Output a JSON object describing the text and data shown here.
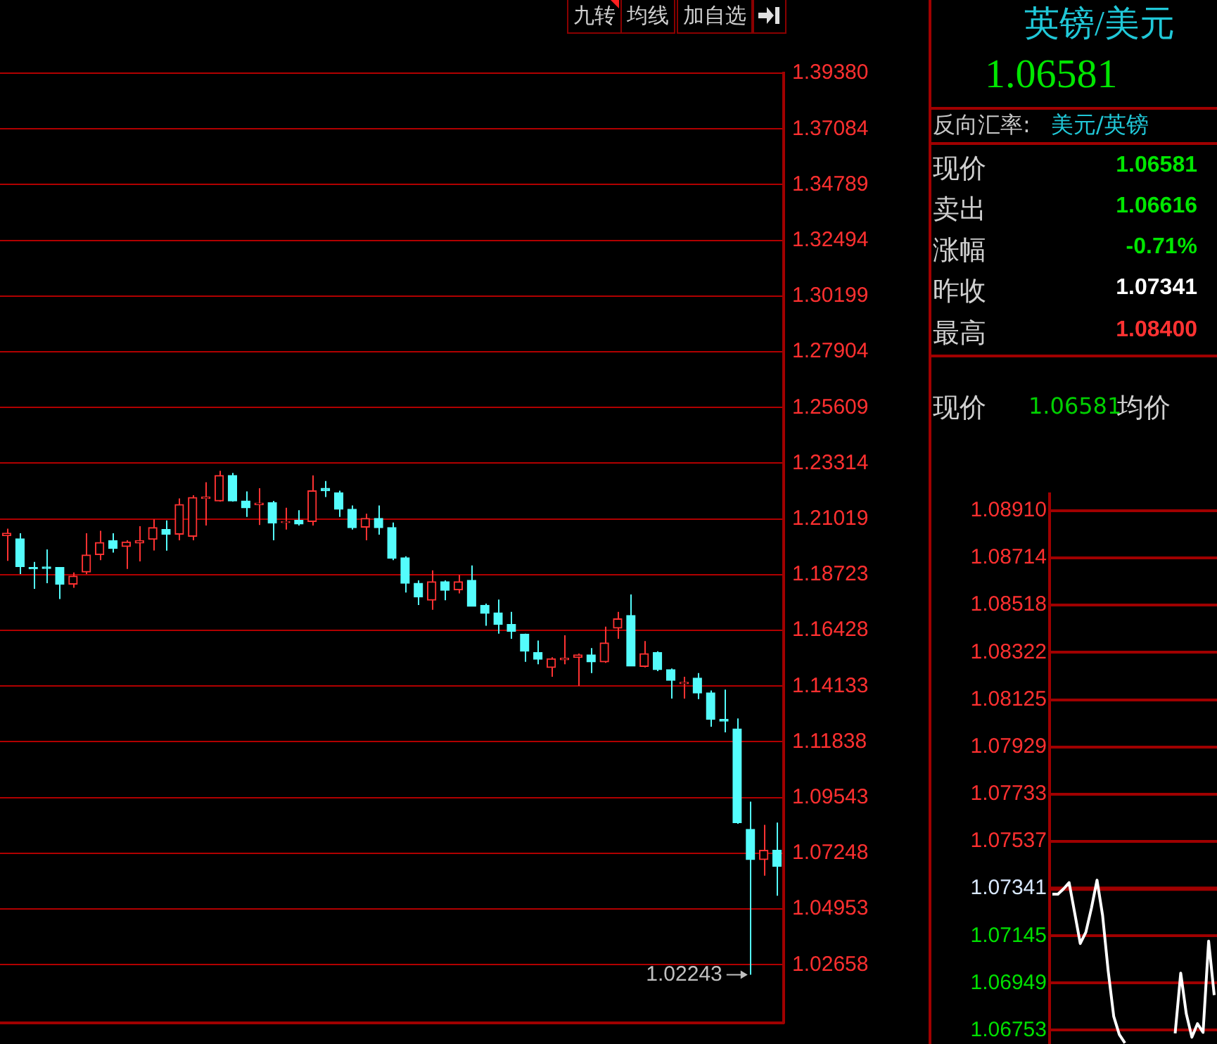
{
  "chart_data": [
    {
      "type": "candlestick",
      "categories": [
        null,
        null,
        null,
        null,
        null,
        null,
        null,
        null,
        null,
        null,
        null,
        null,
        null,
        null,
        null,
        null,
        null,
        null,
        null,
        null,
        null,
        null,
        null,
        null,
        null,
        null,
        null,
        null,
        null,
        null,
        null,
        null,
        null,
        null,
        null,
        null,
        null,
        null,
        null,
        null,
        null,
        null,
        null,
        null,
        null,
        null,
        null,
        null,
        null,
        null,
        null,
        null,
        null,
        null,
        null,
        null,
        null,
        null,
        null
      ],
      "ohlc": [
        [
          1.2033,
          1.2062,
          1.1929,
          1.2043
        ],
        [
          1.202,
          1.2043,
          1.1875,
          1.1906
        ],
        [
          1.1902,
          1.1925,
          1.1814,
          1.1896
        ],
        [
          1.1904,
          1.1976,
          1.1837,
          1.1898
        ],
        [
          1.1902,
          1.1904,
          1.1772,
          1.1833
        ],
        [
          1.1833,
          1.1881,
          1.1818,
          1.1866
        ],
        [
          1.1883,
          1.2043,
          1.1875,
          1.1953
        ],
        [
          1.1955,
          1.2053,
          1.1932,
          1.2005
        ],
        [
          1.2012,
          1.2043,
          1.1963,
          1.198
        ],
        [
          1.1988,
          1.2014,
          1.1896,
          1.2007
        ],
        [
          1.2003,
          1.2072,
          1.1927,
          1.2012
        ],
        [
          1.2018,
          1.21,
          1.1972,
          1.2066
        ],
        [
          1.2058,
          1.2096,
          1.1971,
          1.2039
        ],
        [
          1.2039,
          1.2186,
          1.2014,
          1.2161
        ],
        [
          1.203,
          1.2199,
          1.2014,
          1.219
        ],
        [
          1.2186,
          1.2253,
          1.2075,
          1.2192
        ],
        [
          1.2176,
          1.23,
          1.2173,
          1.2281
        ],
        [
          1.2281,
          1.2291,
          1.2173,
          1.2176
        ],
        [
          1.2176,
          1.2215,
          1.211,
          1.2148
        ],
        [
          1.2161,
          1.2228,
          1.2077,
          1.2167
        ],
        [
          1.2169,
          1.2176,
          1.2014,
          1.2085
        ],
        [
          1.2087,
          1.2148,
          1.2058,
          1.2091
        ],
        [
          1.2096,
          1.2138,
          1.2075,
          1.2081
        ],
        [
          1.2091,
          1.2281,
          1.2075,
          1.2218
        ],
        [
          1.2228,
          1.2258,
          1.2192,
          1.2218
        ],
        [
          1.2209,
          1.2218,
          1.211,
          1.2142
        ],
        [
          1.2142,
          1.2157,
          1.2058,
          1.2066
        ],
        [
          1.2068,
          1.2123,
          1.2014,
          1.2104
        ],
        [
          1.2104,
          1.2157,
          1.2037,
          1.2066
        ],
        [
          1.2066,
          1.2087,
          1.1932,
          1.194
        ],
        [
          1.1942,
          1.1948,
          1.1799,
          1.1837
        ],
        [
          1.1837,
          1.1849,
          1.1747,
          1.178
        ],
        [
          1.1767,
          1.189,
          1.1728,
          1.1843
        ],
        [
          1.1843,
          1.1849,
          1.1767,
          1.1808
        ],
        [
          1.181,
          1.1871,
          1.1795,
          1.1843
        ],
        [
          1.1849,
          1.191,
          1.1742,
          1.1742
        ],
        [
          1.1746,
          1.1753,
          1.1662,
          1.1713
        ],
        [
          1.1715,
          1.177,
          1.1629,
          1.1667
        ],
        [
          1.1667,
          1.1719,
          1.1608,
          1.1639
        ],
        [
          1.1627,
          1.1629,
          1.1513,
          1.1557
        ],
        [
          1.1551,
          1.1601,
          1.1503,
          1.1524
        ],
        [
          1.149,
          1.1532,
          1.1452,
          1.1526
        ],
        [
          1.1522,
          1.1623,
          1.1503,
          1.1528
        ],
        [
          1.1532,
          1.1547,
          1.1414,
          1.1542
        ],
        [
          1.1542,
          1.157,
          1.1467,
          1.1513
        ],
        [
          1.1513,
          1.1658,
          1.1509,
          1.1591
        ],
        [
          1.1652,
          1.1719,
          1.1608,
          1.169
        ],
        [
          1.1704,
          1.1791,
          1.1496,
          1.1496
        ],
        [
          1.1494,
          1.1599,
          1.149,
          1.1547
        ],
        [
          1.1551,
          1.1557,
          1.1475,
          1.1481
        ],
        [
          1.1481,
          1.1486,
          1.1362,
          1.1437
        ],
        [
          1.1423,
          1.1452,
          1.1362,
          1.1429
        ],
        [
          1.1446,
          1.1467,
          1.136,
          1.1385
        ],
        [
          1.1385,
          1.1395,
          1.1246,
          1.1277
        ],
        [
          1.1277,
          1.1399,
          1.1223,
          1.1269
        ],
        [
          1.1237,
          1.128,
          1.0846,
          1.0851
        ],
        [
          1.0823,
          1.0937,
          1.02243,
          1.0699
        ],
        [
          1.0699,
          1.0842,
          1.0632,
          1.0737
        ],
        [
          1.0737,
          1.0851,
          1.055,
          1.0671
        ]
      ],
      "colors": [
        "#ff3232",
        "#54fcfc",
        "#54fcfc",
        "#54fcfc",
        "#54fcfc",
        "#ff3232",
        "#ff3232",
        "#ff3232",
        "#54fcfc",
        "#ff3232",
        "#ff3232",
        "#ff3232",
        "#54fcfc",
        "#ff3232",
        "#ff3232",
        "#ff3232",
        "#ff3232",
        "#54fcfc",
        "#54fcfc",
        "#ff3232",
        "#54fcfc",
        "#ff3232",
        "#54fcfc",
        "#ff3232",
        "#54fcfc",
        "#54fcfc",
        "#54fcfc",
        "#ff3232",
        "#54fcfc",
        "#54fcfc",
        "#54fcfc",
        "#54fcfc",
        "#ff3232",
        "#54fcfc",
        "#ff3232",
        "#54fcfc",
        "#54fcfc",
        "#54fcfc",
        "#54fcfc",
        "#54fcfc",
        "#54fcfc",
        "#ff3232",
        "#ff3232",
        "#ff3232",
        "#54fcfc",
        "#ff3232",
        "#ff3232",
        "#54fcfc",
        "#ff3232",
        "#54fcfc",
        "#54fcfc",
        "#ff3232",
        "#54fcfc",
        "#54fcfc",
        "#54fcfc",
        "#54fcfc",
        "#54fcfc",
        "#ff3232",
        "#54fcfc"
      ],
      "ylim": [
        1.0026,
        1.3938
      ],
      "yticks": [
        {
          "value": 1.3938,
          "label": "1.39380"
        },
        1.37084,
        1.34789,
        1.32494,
        1.30199,
        1.27904,
        1.25609,
        1.23314,
        1.21019,
        1.18723,
        1.16428,
        1.14133,
        1.11838,
        1.09543,
        1.07248,
        1.04953,
        1.02658
      ],
      "grid": "y",
      "legend": false,
      "annotations": [
        "1.02243"
      ]
    },
    {
      "type": "other",
      "title": "英镑/美元",
      "annotations": [
        "九转",
        "均线",
        "加自选",
        "1.06581",
        "反向汇率:",
        "美元/英镑",
        "现价",
        "1.06581",
        "卖出",
        "1.06616",
        "涨幅",
        "-0.71%",
        "昨收",
        "1.07341",
        "最高",
        "1.08400",
        "现价",
        "1.06581",
        "均价"
      ]
    },
    {
      "type": "line",
      "categories": [
        null,
        null,
        null,
        null,
        null,
        null,
        null,
        null,
        null,
        null,
        null,
        null,
        null,
        null,
        null,
        null,
        null,
        null,
        null,
        null,
        null,
        null,
        null,
        null,
        null,
        null,
        null,
        null,
        null,
        null
      ],
      "series": [
        {
          "color": "#ffffff",
          "values": [
            1.07318,
            1.07318,
            1.0734,
            1.07366,
            1.0724,
            1.07113,
            1.0716,
            1.0726,
            1.07376,
            1.0723,
            1.07,
            1.0681,
            1.06735,
            1.067,
            null,
            null,
            null,
            null,
            null,
            null,
            null,
            null,
            1.0674,
            1.0699,
            1.06821,
            1.06724,
            1.0678,
            1.06744,
            1.07123,
            1.06899
          ]
        }
      ],
      "ylim": [
        1.0669,
        1.0898
      ],
      "yticks": [
        {
          "value": 1.0891,
          "label": "1.08910"
        },
        1.08714,
        1.08518,
        1.08322,
        1.08125,
        1.07929,
        1.07733,
        1.07537,
        1.07341,
        1.07145,
        1.06949,
        1.06753
      ],
      "ref_lines": [
        {
          "axis": "y",
          "value": 1.07341,
          "color": "#a00000"
        }
      ],
      "grid": "y",
      "legend": false,
      "marker": "none",
      "line_style": "solid"
    }
  ]
}
